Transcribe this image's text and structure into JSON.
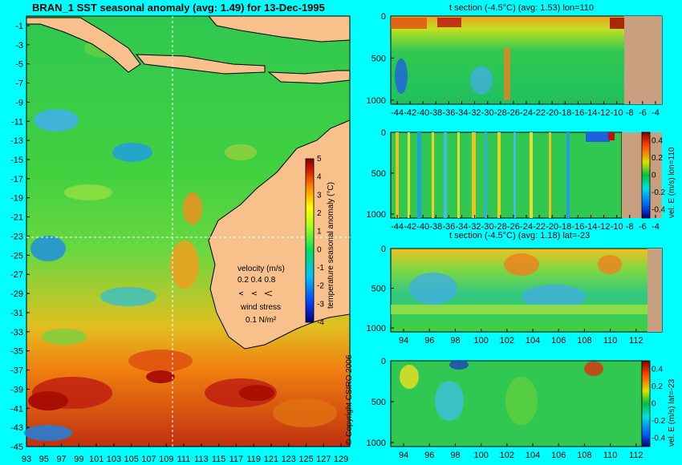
{
  "map": {
    "title": "BRAN_1 SST seasonal anomaly (avg: 1.49) for 13-Dec-1995",
    "lat_ticks": [
      "-1",
      "-3",
      "-5",
      "-7",
      "-9",
      "-11",
      "-13",
      "-15",
      "-17",
      "-19",
      "-21",
      "-23",
      "-25",
      "-27",
      "-29",
      "-31",
      "-33",
      "-35",
      "-37",
      "-39",
      "-41",
      "-43",
      "-45"
    ],
    "lon_ticks": [
      "93",
      "95",
      "97",
      "99",
      "101",
      "103",
      "105",
      "107",
      "109",
      "111",
      "113",
      "115",
      "117",
      "119",
      "121",
      "123",
      "125",
      "127",
      "129"
    ],
    "colorbar": {
      "label": "temperature seasonal anomaly (°C)",
      "ticks": [
        "5",
        "4",
        "3",
        "2",
        "1",
        "0",
        "-1",
        "-2",
        "-3",
        "-4"
      ],
      "min": -4,
      "max": 5
    },
    "velocity_legend": {
      "label": "velocity (m/s)",
      "scale": "0.2 0.4 0.8"
    },
    "wind_legend": {
      "label": "wind stress",
      "scale": "0.1 N/m²"
    },
    "crosshair": {
      "lon": 110,
      "lat": -23
    },
    "colors": {
      "land": "#f8c08a",
      "ocean_green": "#22c840",
      "warm": "#f5a020",
      "hot": "#a00000"
    }
  },
  "sections": [
    {
      "title": "t section (-4.5°C) (avg: 1.53) lon=110",
      "y_ticks": [
        "0",
        "500",
        "1000"
      ],
      "x_ticks": [
        "-44",
        "-42",
        "-40",
        "-38",
        "-36",
        "-34",
        "-32",
        "-30",
        "-28",
        "-26",
        "-24",
        "-22",
        "-20",
        "-18",
        "-16",
        "-14",
        "-12",
        "-10",
        "-8",
        "-6",
        "-4"
      ],
      "colorbar": null
    },
    {
      "title": "",
      "y_ticks": [
        "0",
        "500",
        "1000"
      ],
      "x_ticks": [
        "-44",
        "-42",
        "-40",
        "-38",
        "-36",
        "-34",
        "-32",
        "-30",
        "-28",
        "-26",
        "-24",
        "-22",
        "-20",
        "-18",
        "-16",
        "-14",
        "-12",
        "-10",
        "-8",
        "-6",
        "-4"
      ],
      "colorbar": {
        "label": "vel. E (m/s) lon=110",
        "ticks": [
          "0.4",
          "0.2",
          "0",
          "-0.2",
          "-0.4"
        ]
      }
    },
    {
      "title": "t section (-4.5°C) (avg: 1.18) lat=-23",
      "y_ticks": [
        "0",
        "500",
        "1000"
      ],
      "x_ticks": [
        "94",
        "96",
        "98",
        "100",
        "102",
        "104",
        "106",
        "108",
        "110",
        "112"
      ],
      "colorbar": null
    },
    {
      "title": "",
      "y_ticks": [
        "0",
        "500",
        "1000"
      ],
      "x_ticks": [
        "94",
        "96",
        "98",
        "100",
        "102",
        "104",
        "106",
        "108",
        "110",
        "112"
      ],
      "colorbar": {
        "label": "vel. E (m/s) lat=-23",
        "ticks": [
          "0.4",
          "0.2",
          "0",
          "-0.2",
          "-0.4"
        ]
      }
    }
  ],
  "copyright": "© Copyright CSIRO 2006",
  "chart_data": [
    {
      "type": "heatmap",
      "title": "BRAN_1 SST seasonal anomaly (avg: 1.49) for 13-Dec-1995",
      "xlim": [
        93,
        130
      ],
      "ylim": [
        -45,
        0
      ],
      "clim": [
        -4,
        5
      ],
      "xlabel": "",
      "ylabel": ""
    },
    {
      "type": "heatmap",
      "title": "t section (-4.5°C) (avg: 1.53) lon=110",
      "xlim": [
        -45,
        -3
      ],
      "ylim": [
        1050,
        0
      ]
    },
    {
      "type": "heatmap",
      "title": "",
      "xlim": [
        -45,
        -3
      ],
      "ylim": [
        1050,
        0
      ],
      "clim": [
        -0.5,
        0.5
      ]
    },
    {
      "type": "heatmap",
      "title": "t section (-4.5°C) (avg: 1.18) lat=-23",
      "xlim": [
        93,
        114
      ],
      "ylim": [
        1050,
        0
      ]
    },
    {
      "type": "heatmap",
      "title": "",
      "xlim": [
        93,
        114
      ],
      "ylim": [
        1050,
        0
      ],
      "clim": [
        -0.5,
        0.5
      ]
    }
  ]
}
